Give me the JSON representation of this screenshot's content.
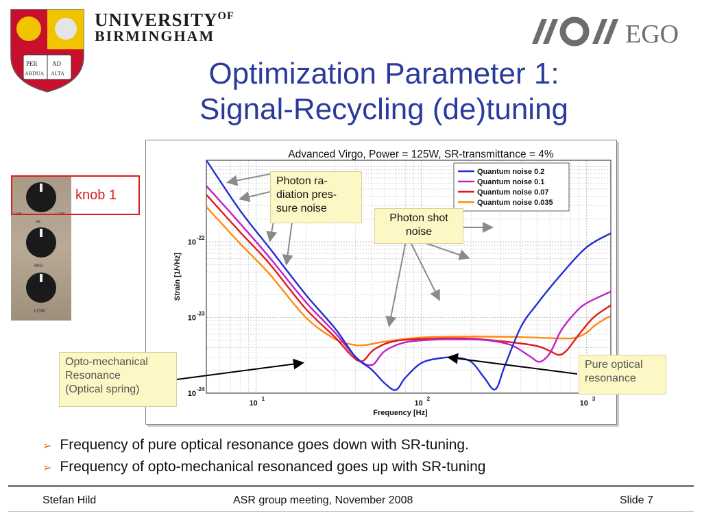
{
  "header": {
    "university_line1": "UNIVERSITY",
    "university_of": "OF",
    "university_line2": "BIRMINGHAM",
    "crest_motto_1": "PER",
    "crest_motto_2": "AD",
    "crest_motto_3": "ARDUA",
    "crest_motto_4": "ALTA",
    "ego_text": "EGO"
  },
  "slide": {
    "title_line1": "Optimization Parameter 1:",
    "title_line2": "Signal-Recycling (de)tuning"
  },
  "knob": {
    "label": "knob 1",
    "hi": "HI",
    "mid": "MID",
    "low": "LOW",
    "scale_min": "-12dB",
    "scale_max": "+12dB"
  },
  "callouts": {
    "radiation_pressure": "Photon ra-diation pres-sure noise",
    "shot_noise": "Photon shot noise",
    "opto_mechanical_1": "Opto-mechanical",
    "opto_mechanical_2": "Resonance",
    "opto_mechanical_3": "(Optical spring)",
    "pure_optical_1": "Pure optical",
    "pure_optical_2": "resonance"
  },
  "bullets": [
    "Frequency of pure optical resonance goes down with SR-tuning.",
    "Frequency of opto-mechanical resonanced goes up with SR-tuning"
  ],
  "footer": {
    "author": "Stefan Hild",
    "event": "ASR group meeting, November 2008",
    "slide_number": "Slide 7"
  },
  "chart_data": {
    "type": "line",
    "title": "Advanced Virgo, Power = 125W, SR-transmittance = 4%",
    "xlabel": "Frequency [Hz]",
    "ylabel": "Strain [1/√Hz]",
    "x_scale": "log",
    "y_scale": "log",
    "xlim": [
      5,
      1400
    ],
    "ylim": [
      1e-24,
      1.2e-21
    ],
    "x_ticks": [
      {
        "v": 10,
        "label": "10^1"
      },
      {
        "v": 100,
        "label": "10^2"
      },
      {
        "v": 1000,
        "label": "10^3"
      }
    ],
    "y_ticks": [
      {
        "v": 1e-24,
        "label": "10^-24"
      },
      {
        "v": 1e-23,
        "label": "10^-23"
      },
      {
        "v": 1e-22,
        "label": "10^-22"
      }
    ],
    "grid": true,
    "legend_position": "top-right",
    "series": [
      {
        "name": "Quantum noise 0.2",
        "color": "#1f2fd1",
        "points": [
          [
            5,
            1.2e-21
          ],
          [
            8,
            2.6e-22
          ],
          [
            12,
            8.4e-23
          ],
          [
            20,
            2e-23
          ],
          [
            30,
            7.2e-24
          ],
          [
            40,
            3e-24
          ],
          [
            50,
            2.05e-24
          ],
          [
            60,
            1.35e-24
          ],
          [
            70,
            1.1e-24
          ],
          [
            80,
            1.6e-24
          ],
          [
            100,
            2.5e-24
          ],
          [
            130,
            2.9e-24
          ],
          [
            160,
            2.95e-24
          ],
          [
            200,
            2.6e-24
          ],
          [
            240,
            1.6e-24
          ],
          [
            280,
            1.12e-24
          ],
          [
            320,
            2.3e-24
          ],
          [
            400,
            7.5e-24
          ],
          [
            500,
            1.5e-23
          ],
          [
            700,
            3.7e-23
          ],
          [
            1000,
            8.5e-23
          ],
          [
            1400,
            1.3e-22
          ]
        ]
      },
      {
        "name": "Quantum noise 0.1",
        "color": "#c020c8",
        "points": [
          [
            5,
            5.5e-22
          ],
          [
            8,
            1.75e-22
          ],
          [
            12,
            6.3e-23
          ],
          [
            20,
            1.6e-23
          ],
          [
            30,
            6.3e-24
          ],
          [
            40,
            3e-24
          ],
          [
            50,
            2.35e-24
          ],
          [
            60,
            3.6e-24
          ],
          [
            80,
            4.7e-24
          ],
          [
            120,
            5.1e-24
          ],
          [
            160,
            5.15e-24
          ],
          [
            250,
            5e-24
          ],
          [
            350,
            4.3e-24
          ],
          [
            450,
            3.1e-24
          ],
          [
            520,
            2.6e-24
          ],
          [
            600,
            3.4e-24
          ],
          [
            700,
            6.7e-24
          ],
          [
            850,
            1.15e-23
          ],
          [
            1000,
            1.55e-23
          ],
          [
            1400,
            2.2e-23
          ]
        ]
      },
      {
        "name": "Quantum noise 0.07",
        "color": "#e01a1a",
        "points": [
          [
            5,
            4.2e-22
          ],
          [
            8,
            1.35e-22
          ],
          [
            12,
            5.2e-23
          ],
          [
            20,
            1.3e-23
          ],
          [
            30,
            5.5e-24
          ],
          [
            38,
            3.1e-24
          ],
          [
            44,
            2.65e-24
          ],
          [
            52,
            3.8e-24
          ],
          [
            70,
            4.9e-24
          ],
          [
            120,
            5.25e-24
          ],
          [
            200,
            5.25e-24
          ],
          [
            350,
            4.7e-24
          ],
          [
            500,
            4.2e-24
          ],
          [
            600,
            3.6e-24
          ],
          [
            680,
            3.2e-24
          ],
          [
            760,
            3.7e-24
          ],
          [
            900,
            6e-24
          ],
          [
            1100,
            1e-23
          ],
          [
            1400,
            1.45e-23
          ]
        ]
      },
      {
        "name": "Quantum noise 0.035",
        "color": "#ff8a10",
        "points": [
          [
            5,
            2.9e-22
          ],
          [
            8,
            9.5e-23
          ],
          [
            12,
            3.8e-23
          ],
          [
            20,
            1e-23
          ],
          [
            30,
            5.2e-24
          ],
          [
            38,
            4.4e-24
          ],
          [
            45,
            4.3e-24
          ],
          [
            60,
            4.8e-24
          ],
          [
            100,
            5.45e-24
          ],
          [
            200,
            5.6e-24
          ],
          [
            400,
            5.5e-24
          ],
          [
            700,
            5.3e-24
          ],
          [
            850,
            5.4e-24
          ],
          [
            1000,
            6.3e-24
          ],
          [
            1100,
            7.6e-24
          ],
          [
            1250,
            9.2e-24
          ],
          [
            1400,
            1.05e-23
          ]
        ]
      }
    ]
  }
}
